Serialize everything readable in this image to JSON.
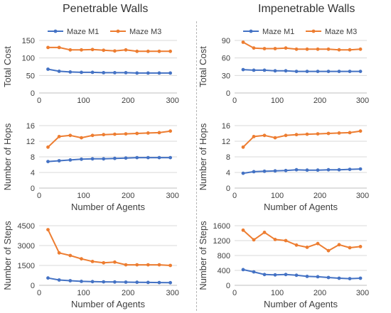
{
  "columns": {
    "left_title": "Penetrable Walls",
    "right_title": "Impenetrable Walls"
  },
  "colors": {
    "maze_m1": "#4472C4",
    "maze_m3": "#ED7D31",
    "grid": "#d9d9d9",
    "axis": "#bfbfbf",
    "text": "#404040"
  },
  "chart_data": [
    {
      "id": "pen-cost",
      "type": "line",
      "title": "",
      "xlabel": "",
      "ylabel": "Total Cost",
      "xlim": [
        0,
        310
      ],
      "xticks": [
        0,
        100,
        200,
        300
      ],
      "ylim": [
        0,
        150
      ],
      "yticks": [
        0,
        50,
        100,
        150
      ],
      "legend": "top",
      "grid": true,
      "series": [
        {
          "name": "Maze M1",
          "x": [
            20,
            45,
            70,
            95,
            120,
            145,
            170,
            195,
            220,
            245,
            270,
            295
          ],
          "y": [
            68,
            62,
            60,
            59,
            59,
            58,
            58,
            58,
            57,
            57,
            57,
            57
          ]
        },
        {
          "name": "Maze M3",
          "x": [
            20,
            45,
            70,
            95,
            120,
            145,
            170,
            195,
            220,
            245,
            270,
            295
          ],
          "y": [
            130,
            130,
            123,
            123,
            124,
            122,
            120,
            123,
            119,
            119,
            119,
            119
          ]
        }
      ]
    },
    {
      "id": "pen-hops",
      "type": "line",
      "title": "",
      "xlabel": "Number of Agents",
      "ylabel": "Number of Hops",
      "xlim": [
        0,
        310
      ],
      "xticks": [
        0,
        100,
        200,
        300
      ],
      "ylim": [
        0,
        16
      ],
      "yticks": [
        0,
        4,
        8,
        12,
        16
      ],
      "grid": true,
      "series": [
        {
          "name": "Maze M1",
          "x": [
            20,
            45,
            70,
            95,
            120,
            145,
            170,
            195,
            220,
            245,
            270,
            295
          ],
          "y": [
            6.8,
            7.0,
            7.2,
            7.4,
            7.5,
            7.5,
            7.6,
            7.7,
            7.8,
            7.8,
            7.8,
            7.8
          ]
        },
        {
          "name": "Maze M3",
          "x": [
            20,
            45,
            70,
            95,
            120,
            145,
            170,
            195,
            220,
            245,
            270,
            295
          ],
          "y": [
            10.5,
            13.2,
            13.5,
            12.9,
            13.5,
            13.7,
            13.8,
            13.9,
            14.0,
            14.1,
            14.2,
            14.6
          ]
        }
      ]
    },
    {
      "id": "pen-steps",
      "type": "line",
      "title": "",
      "xlabel": "Number of Agents",
      "ylabel": "Number of Steps",
      "xlim": [
        0,
        310
      ],
      "xticks": [
        0,
        100,
        200,
        300
      ],
      "ylim": [
        0,
        4500
      ],
      "yticks": [
        0,
        1500,
        3000,
        4500
      ],
      "grid": true,
      "series": [
        {
          "name": "Maze M1",
          "x": [
            20,
            45,
            70,
            95,
            120,
            145,
            170,
            195,
            220,
            245,
            270,
            295
          ],
          "y": [
            550,
            400,
            350,
            300,
            280,
            260,
            250,
            240,
            230,
            220,
            210,
            200
          ]
        },
        {
          "name": "Maze M3",
          "x": [
            20,
            45,
            70,
            95,
            120,
            145,
            170,
            195,
            220,
            245,
            270,
            295
          ],
          "y": [
            4200,
            2450,
            2250,
            2000,
            1800,
            1700,
            1750,
            1550,
            1550,
            1550,
            1550,
            1500
          ]
        }
      ]
    },
    {
      "id": "imp-cost",
      "type": "line",
      "title": "",
      "xlabel": "",
      "ylabel": "Total Cost",
      "xlim": [
        0,
        310
      ],
      "xticks": [
        0,
        100,
        200,
        300
      ],
      "ylim": [
        0,
        90
      ],
      "yticks": [
        0,
        30,
        60,
        90
      ],
      "legend": "top",
      "grid": true,
      "series": [
        {
          "name": "Maze M1",
          "x": [
            20,
            45,
            70,
            95,
            120,
            145,
            170,
            195,
            220,
            245,
            270,
            295
          ],
          "y": [
            40,
            39,
            39,
            38,
            38,
            37,
            37,
            37,
            37,
            37,
            37,
            37
          ]
        },
        {
          "name": "Maze M3",
          "x": [
            20,
            45,
            70,
            95,
            120,
            145,
            170,
            195,
            220,
            245,
            270,
            295
          ],
          "y": [
            87,
            77,
            76,
            76,
            77,
            75,
            75,
            75,
            75,
            74,
            74,
            75
          ]
        }
      ]
    },
    {
      "id": "imp-hops",
      "type": "line",
      "title": "",
      "xlabel": "Number of Agents",
      "ylabel": "Number of Hops",
      "xlim": [
        0,
        310
      ],
      "xticks": [
        0,
        100,
        200,
        300
      ],
      "ylim": [
        0,
        16
      ],
      "yticks": [
        0,
        4,
        8,
        12,
        16
      ],
      "grid": true,
      "series": [
        {
          "name": "Maze M1",
          "x": [
            20,
            45,
            70,
            95,
            120,
            145,
            170,
            195,
            220,
            245,
            270,
            295
          ],
          "y": [
            3.8,
            4.2,
            4.3,
            4.4,
            4.5,
            4.7,
            4.6,
            4.6,
            4.7,
            4.7,
            4.8,
            4.9
          ]
        },
        {
          "name": "Maze M3",
          "x": [
            20,
            45,
            70,
            95,
            120,
            145,
            170,
            195,
            220,
            245,
            270,
            295
          ],
          "y": [
            10.5,
            13.2,
            13.5,
            12.9,
            13.5,
            13.7,
            13.8,
            13.9,
            14.0,
            14.1,
            14.2,
            14.6
          ]
        }
      ]
    },
    {
      "id": "imp-steps",
      "type": "line",
      "title": "",
      "xlabel": "Number of Agents",
      "ylabel": "Number of Steps",
      "xlim": [
        0,
        310
      ],
      "xticks": [
        0,
        100,
        200,
        300
      ],
      "ylim": [
        0,
        1600
      ],
      "yticks": [
        0,
        400,
        800,
        1200,
        1600
      ],
      "grid": true,
      "series": [
        {
          "name": "Maze M1",
          "x": [
            20,
            45,
            70,
            95,
            120,
            145,
            170,
            195,
            220,
            245,
            270,
            295
          ],
          "y": [
            420,
            360,
            290,
            280,
            290,
            270,
            240,
            230,
            210,
            190,
            180,
            190
          ]
        },
        {
          "name": "Maze M3",
          "x": [
            20,
            45,
            70,
            95,
            120,
            145,
            170,
            195,
            220,
            245,
            270,
            295
          ],
          "y": [
            1480,
            1220,
            1420,
            1230,
            1200,
            1080,
            1020,
            1120,
            930,
            1090,
            1010,
            1040
          ]
        }
      ]
    }
  ]
}
